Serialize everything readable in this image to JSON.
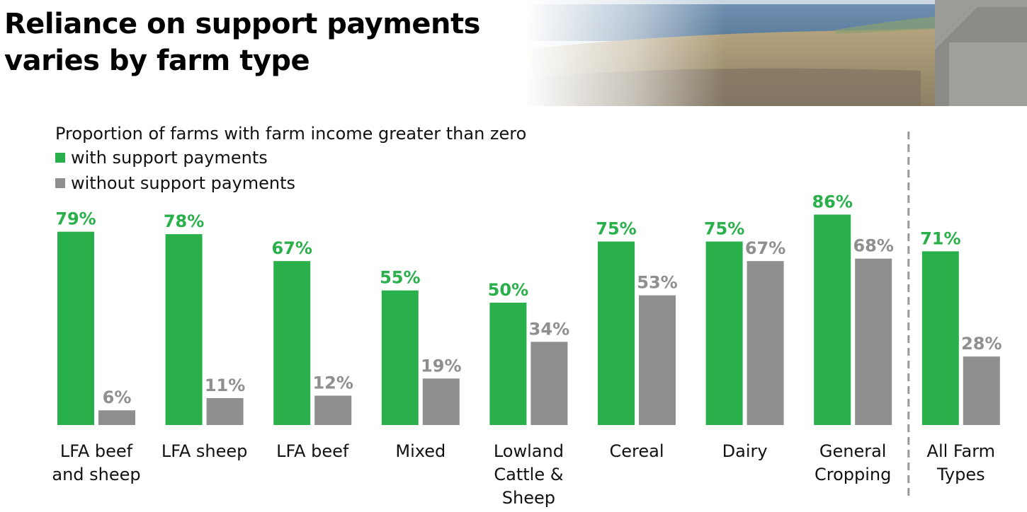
{
  "header": {
    "title_line1": "Reliance on support payments",
    "title_line2": "varies by farm type"
  },
  "colors": {
    "with": "#2ab04a",
    "without": "#8f8f8f",
    "divider": "#999999"
  },
  "chart_data": {
    "type": "bar",
    "title": "Proportion of farms with farm income greater than zero",
    "categories": [
      [
        "LFA beef",
        "and sheep"
      ],
      [
        "LFA sheep"
      ],
      [
        "LFA beef"
      ],
      [
        "Mixed"
      ],
      [
        "Lowland",
        "Cattle &",
        "Sheep"
      ],
      [
        "Cereal"
      ],
      [
        "Dairy"
      ],
      [
        "General",
        "Cropping"
      ],
      [
        "All Farm",
        "Types"
      ]
    ],
    "series": [
      {
        "name": "with support payments",
        "values": [
          79,
          78,
          67,
          55,
          50,
          75,
          75,
          86,
          71
        ]
      },
      {
        "name": "without support payments",
        "values": [
          6,
          11,
          12,
          19,
          34,
          53,
          67,
          68,
          28
        ]
      }
    ],
    "unit": "%",
    "ylim": [
      0,
      100
    ],
    "grid": false,
    "legend_position": "top-left",
    "separator_before_last_category": true
  }
}
